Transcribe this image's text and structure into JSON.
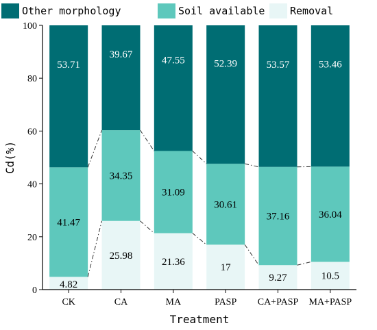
{
  "chart_data": {
    "type": "bar",
    "stacked": true,
    "categories": [
      "CK",
      "CA",
      "MA",
      "PASP",
      "CA+PASP",
      "MA+PASP"
    ],
    "series": [
      {
        "name": "Removal",
        "color": "#e8f6f6",
        "values": [
          4.82,
          25.98,
          21.36,
          17,
          9.27,
          10.5
        ],
        "labels": [
          "4.82",
          "25.98",
          "21.36",
          "17",
          "9.27",
          "10.5"
        ]
      },
      {
        "name": "Soil available",
        "color": "#5ec8bc",
        "values": [
          41.47,
          34.35,
          31.09,
          30.61,
          37.16,
          36.04
        ],
        "labels": [
          "41.47",
          "34.35",
          "31.09",
          "30.61",
          "37.16",
          "36.04"
        ]
      },
      {
        "name": "Other morphology",
        "color": "#006d73",
        "values": [
          53.71,
          39.67,
          47.55,
          52.39,
          53.57,
          53.46
        ],
        "labels": [
          "53.71",
          "39.67",
          "47.55",
          "52.39",
          "53.57",
          "53.46"
        ]
      }
    ],
    "legend_order": [
      "Other morphology",
      "Soil available",
      "Removal"
    ],
    "legend_position": "top",
    "xlabel": "Treatment",
    "ylabel": "Cd(%)",
    "ylim": [
      0,
      100
    ],
    "yticks": [
      0,
      20,
      40,
      60,
      80,
      100
    ],
    "ytick_labels": [
      "0",
      "20",
      "40",
      "60",
      "80",
      "100"
    ],
    "connector_lines": "dash-dot lines joining segment boundaries between adjacent bars",
    "grid": false
  }
}
